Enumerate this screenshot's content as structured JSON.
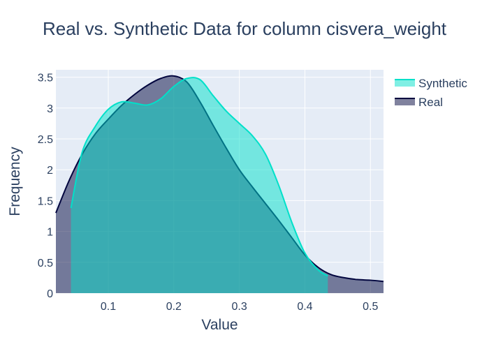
{
  "chart_data": {
    "type": "area",
    "title": "Real vs. Synthetic Data for column cisvera_weight",
    "xlabel": "Value",
    "ylabel": "Frequency",
    "xlim": [
      0.02,
      0.52
    ],
    "ylim": [
      0,
      3.62
    ],
    "x_ticks": [
      0.1,
      0.2,
      0.3,
      0.4,
      0.5
    ],
    "x_tick_labels": [
      "0.1",
      "0.2",
      "0.3",
      "0.4",
      "0.5"
    ],
    "y_ticks": [
      0,
      0.5,
      1,
      1.5,
      2,
      2.5,
      3,
      3.5
    ],
    "y_tick_labels": [
      "0",
      "0.5",
      "1",
      "1.5",
      "2",
      "2.5",
      "3",
      "3.5"
    ],
    "grid": true,
    "legend_position": "top-right",
    "series": [
      {
        "name": "Real",
        "color": "#01053e",
        "fill": "rgba(1,5,62,0.5)",
        "x": [
          0.02,
          0.04,
          0.06,
          0.08,
          0.1,
          0.12,
          0.14,
          0.16,
          0.18,
          0.2,
          0.22,
          0.24,
          0.26,
          0.28,
          0.3,
          0.32,
          0.34,
          0.36,
          0.38,
          0.4,
          0.42,
          0.44,
          0.46,
          0.48,
          0.5,
          0.52
        ],
        "values": [
          1.3,
          1.82,
          2.25,
          2.58,
          2.82,
          3.04,
          3.22,
          3.37,
          3.48,
          3.52,
          3.42,
          3.1,
          2.72,
          2.35,
          2.0,
          1.72,
          1.45,
          1.18,
          0.9,
          0.62,
          0.42,
          0.3,
          0.25,
          0.22,
          0.21,
          0.19
        ]
      },
      {
        "name": "Synthetic",
        "color": "#01e0c9",
        "fill": "rgba(1,224,201,0.5)",
        "x": [
          0.043,
          0.06,
          0.08,
          0.1,
          0.12,
          0.14,
          0.16,
          0.18,
          0.2,
          0.22,
          0.24,
          0.26,
          0.28,
          0.3,
          0.32,
          0.34,
          0.36,
          0.38,
          0.4,
          0.42,
          0.435
        ],
        "values": [
          1.38,
          2.28,
          2.7,
          2.98,
          3.1,
          3.08,
          3.05,
          3.15,
          3.35,
          3.48,
          3.46,
          3.2,
          2.95,
          2.75,
          2.55,
          2.25,
          1.75,
          1.15,
          0.65,
          0.38,
          0.28
        ]
      }
    ]
  }
}
